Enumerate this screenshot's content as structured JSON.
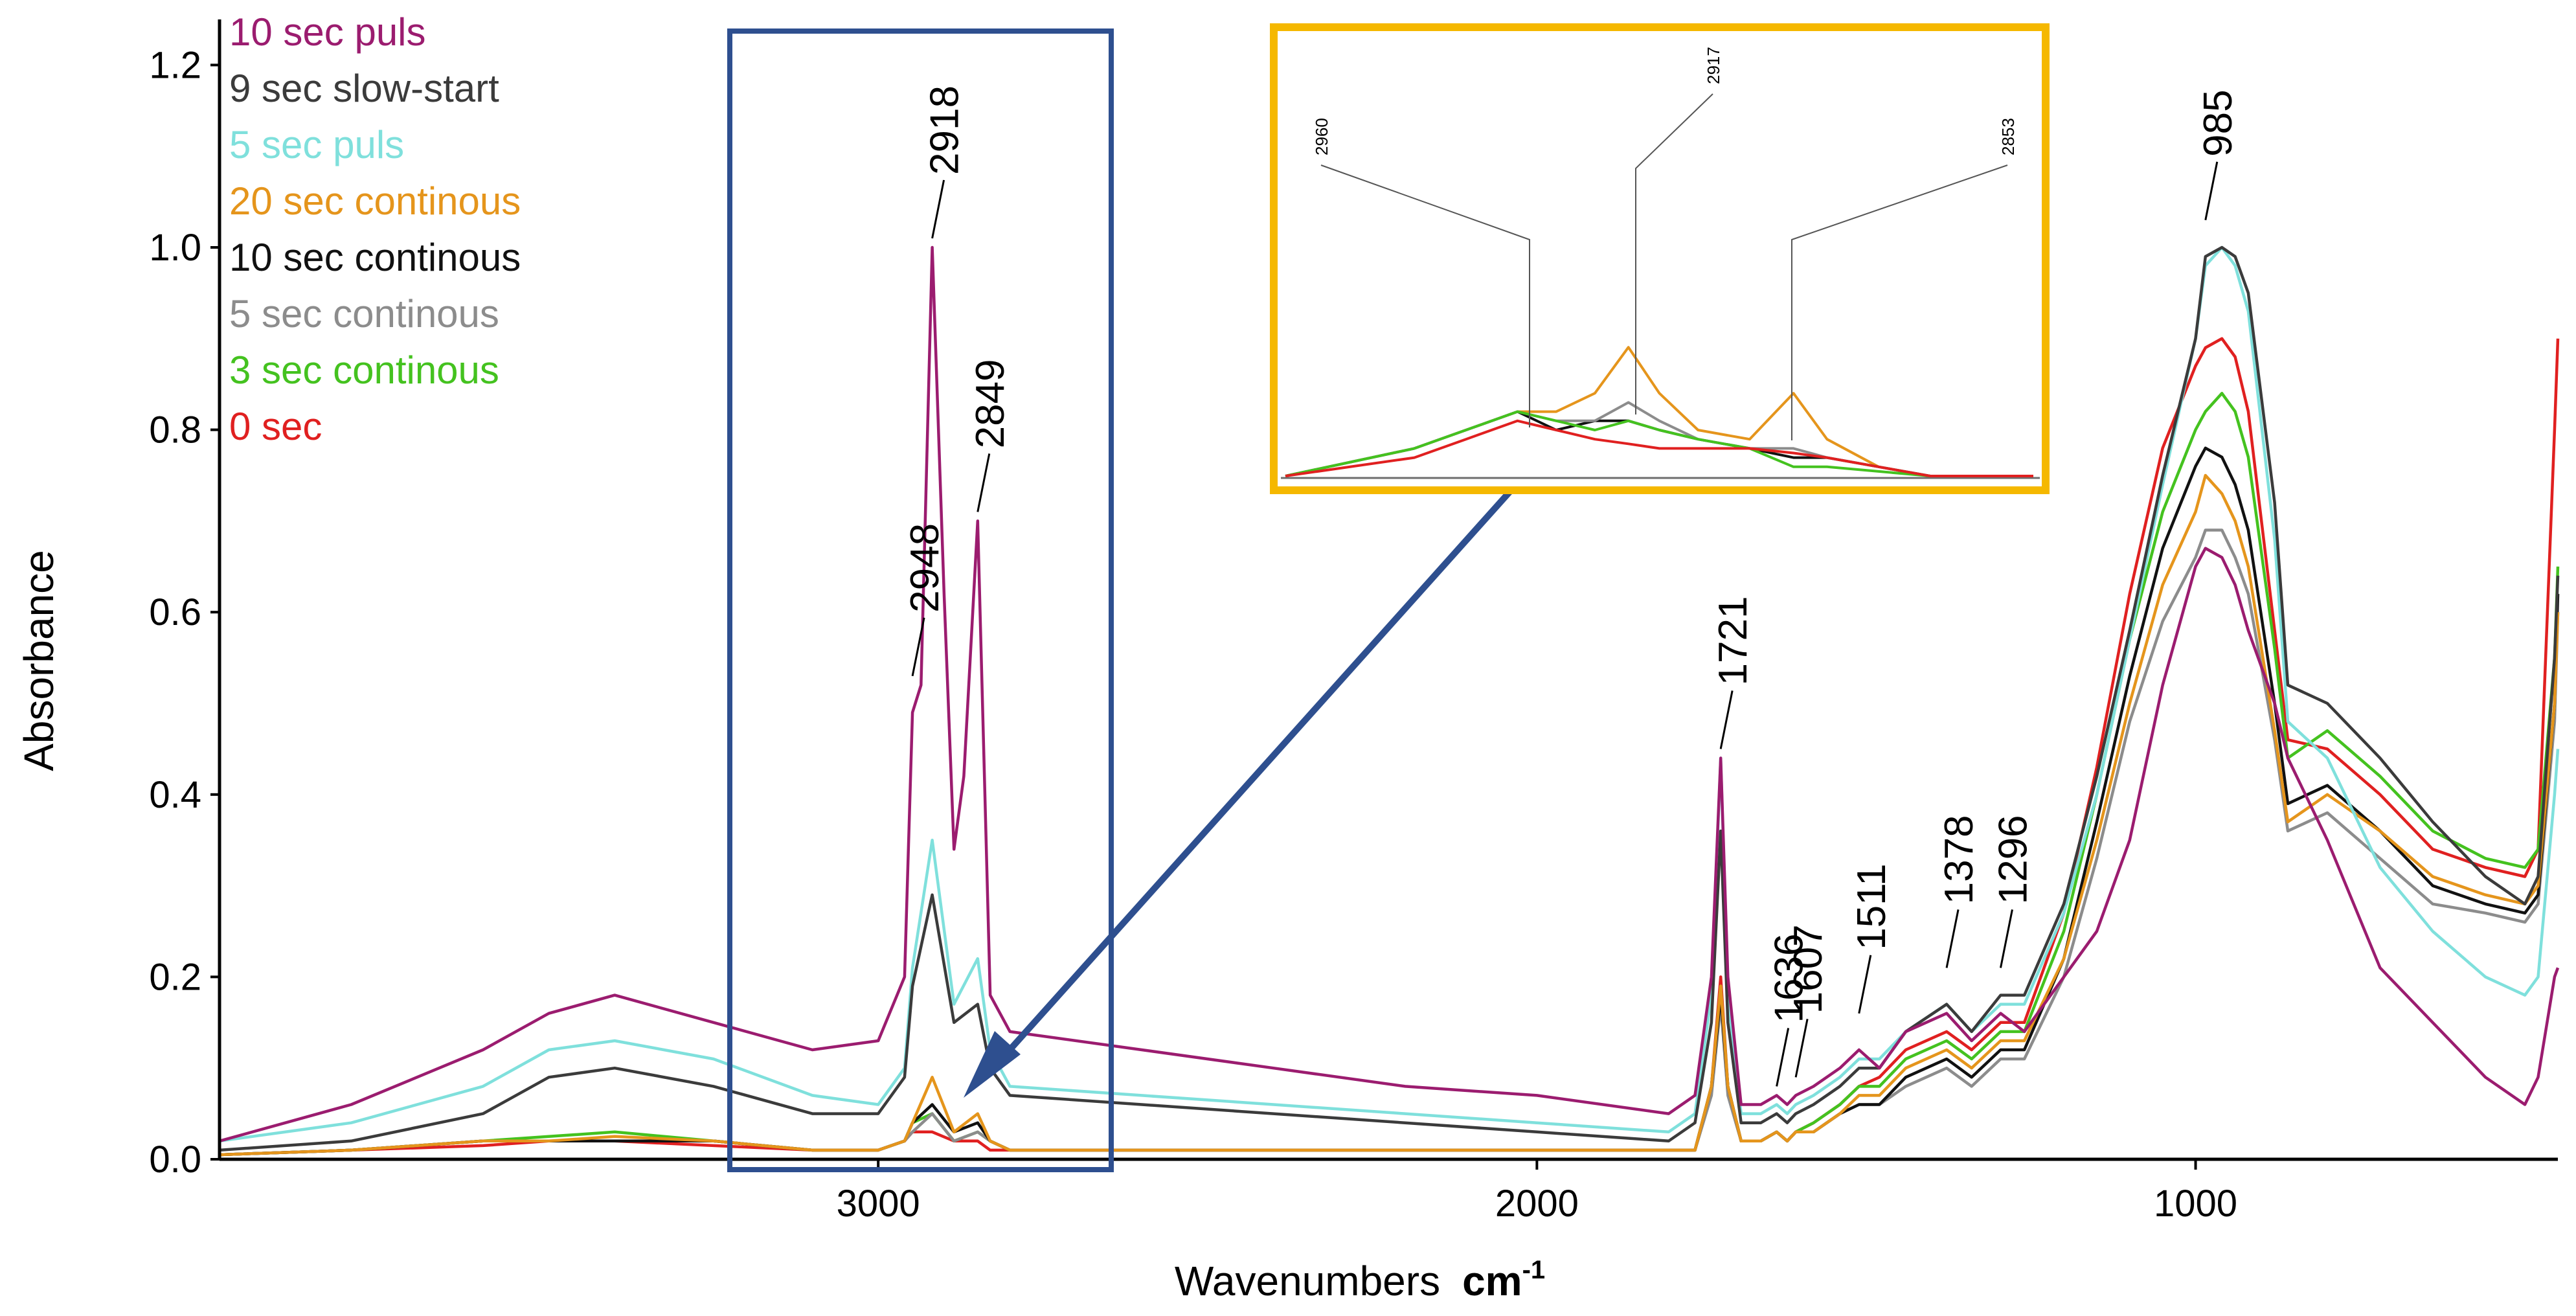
{
  "chart_data": {
    "type": "line",
    "title": "",
    "xlabel": "Wavenumbers",
    "xlabel_unit": "cm",
    "xlabel_unit_exp": "-1",
    "ylabel": "Absorbance",
    "xlim": [
      4000,
      450
    ],
    "ylim": [
      0,
      1.25
    ],
    "x_ticks": [
      3000,
      2000,
      1000
    ],
    "x_tick_labels": [
      "3000",
      "2000",
      "1000"
    ],
    "y_ticks": [
      0.0,
      0.2,
      0.4,
      0.6,
      0.8,
      1.0,
      1.2
    ],
    "y_tick_labels": [
      "0.0",
      "0.2",
      "0.4",
      "0.6",
      "0.8",
      "1.0",
      "1.2"
    ],
    "grid": false,
    "legend_position": "top-left",
    "series": [
      {
        "name": "10 sec puls",
        "color": "#9b1c6f",
        "x": [
          4000,
          3800,
          3600,
          3500,
          3400,
          3250,
          3100,
          3000,
          2960,
          2948,
          2935,
          2918,
          2900,
          2885,
          2870,
          2849,
          2830,
          2800,
          2600,
          2400,
          2200,
          2000,
          1800,
          1760,
          1735,
          1721,
          1710,
          1690,
          1660,
          1636,
          1620,
          1607,
          1580,
          1540,
          1511,
          1480,
          1440,
          1378,
          1340,
          1296,
          1260,
          1200,
          1150,
          1100,
          1050,
          1000,
          985,
          960,
          940,
          920,
          880,
          860,
          800,
          720,
          640,
          560,
          500,
          480,
          455,
          450
        ],
        "y": [
          0.02,
          0.06,
          0.12,
          0.16,
          0.18,
          0.15,
          0.12,
          0.13,
          0.2,
          0.49,
          0.52,
          1.0,
          0.62,
          0.34,
          0.42,
          0.7,
          0.18,
          0.14,
          0.12,
          0.1,
          0.08,
          0.07,
          0.05,
          0.07,
          0.2,
          0.44,
          0.2,
          0.06,
          0.06,
          0.07,
          0.06,
          0.07,
          0.08,
          0.1,
          0.12,
          0.1,
          0.14,
          0.16,
          0.13,
          0.16,
          0.14,
          0.2,
          0.25,
          0.35,
          0.52,
          0.65,
          0.67,
          0.66,
          0.63,
          0.58,
          0.5,
          0.44,
          0.35,
          0.21,
          0.15,
          0.09,
          0.06,
          0.09,
          0.2,
          0.21
        ]
      },
      {
        "name": "9 sec slow-start",
        "color": "#3b3b3b",
        "x": [
          4000,
          3800,
          3600,
          3500,
          3400,
          3250,
          3100,
          3000,
          2960,
          2948,
          2918,
          2885,
          2849,
          2830,
          2800,
          2600,
          2400,
          2200,
          2000,
          1800,
          1760,
          1735,
          1721,
          1710,
          1690,
          1660,
          1636,
          1620,
          1607,
          1580,
          1540,
          1511,
          1480,
          1440,
          1378,
          1340,
          1296,
          1260,
          1200,
          1150,
          1100,
          1050,
          1000,
          985,
          960,
          940,
          920,
          880,
          860,
          800,
          720,
          640,
          560,
          500,
          480,
          455,
          450
        ],
        "y": [
          0.01,
          0.02,
          0.05,
          0.09,
          0.1,
          0.08,
          0.05,
          0.05,
          0.09,
          0.19,
          0.29,
          0.15,
          0.17,
          0.1,
          0.07,
          0.06,
          0.05,
          0.04,
          0.03,
          0.02,
          0.04,
          0.15,
          0.36,
          0.15,
          0.04,
          0.04,
          0.05,
          0.04,
          0.05,
          0.06,
          0.08,
          0.1,
          0.1,
          0.14,
          0.17,
          0.14,
          0.18,
          0.18,
          0.28,
          0.42,
          0.58,
          0.75,
          0.9,
          0.99,
          1.0,
          0.99,
          0.95,
          0.72,
          0.52,
          0.5,
          0.44,
          0.37,
          0.31,
          0.28,
          0.31,
          0.55,
          0.64
        ]
      },
      {
        "name": "5 sec puls",
        "color": "#7fe0dc",
        "x": [
          4000,
          3800,
          3600,
          3500,
          3400,
          3250,
          3100,
          3000,
          2960,
          2948,
          2918,
          2885,
          2849,
          2830,
          2800,
          2600,
          2400,
          2200,
          2000,
          1800,
          1760,
          1735,
          1721,
          1710,
          1690,
          1660,
          1636,
          1620,
          1607,
          1580,
          1540,
          1511,
          1480,
          1440,
          1378,
          1340,
          1296,
          1260,
          1200,
          1150,
          1100,
          1050,
          1000,
          985,
          960,
          940,
          920,
          880,
          860,
          800,
          720,
          640,
          560,
          500,
          480,
          455,
          450
        ],
        "y": [
          0.02,
          0.04,
          0.08,
          0.12,
          0.13,
          0.11,
          0.07,
          0.06,
          0.1,
          0.21,
          0.35,
          0.17,
          0.22,
          0.12,
          0.08,
          0.07,
          0.06,
          0.05,
          0.04,
          0.03,
          0.05,
          0.18,
          0.44,
          0.18,
          0.05,
          0.05,
          0.06,
          0.05,
          0.06,
          0.07,
          0.09,
          0.11,
          0.11,
          0.14,
          0.17,
          0.14,
          0.17,
          0.17,
          0.27,
          0.4,
          0.57,
          0.74,
          0.9,
          0.98,
          1.0,
          0.98,
          0.93,
          0.68,
          0.48,
          0.44,
          0.32,
          0.25,
          0.2,
          0.18,
          0.2,
          0.4,
          0.45
        ]
      },
      {
        "name": "20 sec continous",
        "color": "#e5951c",
        "x": [
          4000,
          3800,
          3600,
          3500,
          3400,
          3250,
          3100,
          3000,
          2960,
          2948,
          2918,
          2885,
          2849,
          2830,
          2800,
          2600,
          2400,
          2200,
          2000,
          1800,
          1760,
          1735,
          1721,
          1710,
          1690,
          1660,
          1636,
          1620,
          1607,
          1580,
          1540,
          1511,
          1480,
          1440,
          1378,
          1340,
          1296,
          1260,
          1200,
          1150,
          1100,
          1050,
          1000,
          985,
          960,
          940,
          920,
          880,
          860,
          800,
          720,
          640,
          560,
          500,
          480,
          455,
          450
        ],
        "y": [
          0.005,
          0.01,
          0.02,
          0.02,
          0.025,
          0.02,
          0.01,
          0.01,
          0.02,
          0.04,
          0.09,
          0.03,
          0.05,
          0.02,
          0.01,
          0.01,
          0.01,
          0.01,
          0.01,
          0.01,
          0.01,
          0.08,
          0.19,
          0.08,
          0.02,
          0.02,
          0.03,
          0.02,
          0.03,
          0.03,
          0.05,
          0.07,
          0.07,
          0.1,
          0.12,
          0.1,
          0.13,
          0.13,
          0.22,
          0.35,
          0.5,
          0.63,
          0.71,
          0.75,
          0.73,
          0.7,
          0.65,
          0.47,
          0.37,
          0.4,
          0.36,
          0.31,
          0.29,
          0.28,
          0.3,
          0.5,
          0.6
        ]
      },
      {
        "name": "10 sec continous",
        "color": "#111111",
        "x": [
          4000,
          3800,
          3600,
          3500,
          3400,
          3250,
          3100,
          3000,
          2960,
          2948,
          2918,
          2885,
          2849,
          2830,
          2800,
          2600,
          2400,
          2200,
          2000,
          1800,
          1760,
          1735,
          1721,
          1710,
          1690,
          1660,
          1636,
          1620,
          1607,
          1580,
          1540,
          1511,
          1480,
          1440,
          1378,
          1340,
          1296,
          1260,
          1200,
          1150,
          1100,
          1050,
          1000,
          985,
          960,
          940,
          920,
          880,
          860,
          800,
          720,
          640,
          560,
          500,
          480,
          455,
          450
        ],
        "y": [
          0.005,
          0.01,
          0.02,
          0.02,
          0.02,
          0.02,
          0.01,
          0.01,
          0.02,
          0.04,
          0.06,
          0.03,
          0.04,
          0.02,
          0.01,
          0.01,
          0.01,
          0.01,
          0.01,
          0.01,
          0.01,
          0.08,
          0.18,
          0.08,
          0.02,
          0.02,
          0.03,
          0.02,
          0.03,
          0.03,
          0.05,
          0.06,
          0.06,
          0.09,
          0.11,
          0.09,
          0.12,
          0.12,
          0.22,
          0.37,
          0.53,
          0.67,
          0.76,
          0.78,
          0.77,
          0.74,
          0.69,
          0.5,
          0.39,
          0.41,
          0.36,
          0.3,
          0.28,
          0.27,
          0.29,
          0.5,
          0.62
        ]
      },
      {
        "name": "5 sec continous",
        "color": "#8c8c8c",
        "x": [
          4000,
          3800,
          3600,
          3500,
          3400,
          3250,
          3100,
          3000,
          2960,
          2948,
          2918,
          2885,
          2849,
          2830,
          2800,
          2600,
          2400,
          2200,
          2000,
          1800,
          1760,
          1735,
          1721,
          1710,
          1690,
          1660,
          1636,
          1620,
          1607,
          1580,
          1540,
          1511,
          1480,
          1440,
          1378,
          1340,
          1296,
          1260,
          1200,
          1150,
          1100,
          1050,
          1000,
          985,
          960,
          940,
          920,
          880,
          860,
          800,
          720,
          640,
          560,
          500,
          480,
          455,
          450
        ],
        "y": [
          0.005,
          0.01,
          0.02,
          0.02,
          0.02,
          0.02,
          0.01,
          0.01,
          0.02,
          0.03,
          0.05,
          0.02,
          0.03,
          0.02,
          0.01,
          0.01,
          0.01,
          0.01,
          0.01,
          0.01,
          0.01,
          0.07,
          0.17,
          0.07,
          0.02,
          0.02,
          0.03,
          0.02,
          0.03,
          0.03,
          0.05,
          0.06,
          0.06,
          0.08,
          0.1,
          0.08,
          0.11,
          0.11,
          0.2,
          0.33,
          0.48,
          0.59,
          0.66,
          0.69,
          0.69,
          0.66,
          0.62,
          0.46,
          0.36,
          0.38,
          0.33,
          0.28,
          0.27,
          0.26,
          0.28,
          0.48,
          0.6
        ]
      },
      {
        "name": "3 sec continous",
        "color": "#44c21f",
        "x": [
          4000,
          3800,
          3600,
          3500,
          3400,
          3250,
          3100,
          3000,
          2960,
          2948,
          2918,
          2885,
          2849,
          2830,
          2800,
          2600,
          2400,
          2200,
          2000,
          1800,
          1760,
          1735,
          1721,
          1710,
          1690,
          1660,
          1636,
          1620,
          1607,
          1580,
          1540,
          1511,
          1480,
          1440,
          1378,
          1340,
          1296,
          1260,
          1200,
          1150,
          1100,
          1050,
          1000,
          985,
          960,
          940,
          920,
          880,
          860,
          800,
          720,
          640,
          560,
          500,
          480,
          455,
          450
        ],
        "y": [
          0.005,
          0.01,
          0.02,
          0.025,
          0.03,
          0.02,
          0.01,
          0.01,
          0.02,
          0.04,
          0.05,
          0.02,
          0.03,
          0.02,
          0.01,
          0.01,
          0.01,
          0.01,
          0.01,
          0.01,
          0.01,
          0.08,
          0.19,
          0.08,
          0.02,
          0.02,
          0.03,
          0.02,
          0.03,
          0.04,
          0.06,
          0.08,
          0.08,
          0.11,
          0.13,
          0.11,
          0.14,
          0.14,
          0.25,
          0.4,
          0.57,
          0.71,
          0.8,
          0.82,
          0.84,
          0.82,
          0.77,
          0.56,
          0.44,
          0.47,
          0.42,
          0.36,
          0.33,
          0.32,
          0.34,
          0.55,
          0.65
        ]
      },
      {
        "name": "0 sec",
        "color": "#e02020",
        "x": [
          4000,
          3800,
          3600,
          3500,
          3400,
          3250,
          3100,
          3000,
          2960,
          2948,
          2918,
          2885,
          2849,
          2830,
          2800,
          2600,
          2400,
          2200,
          2000,
          1800,
          1760,
          1735,
          1721,
          1710,
          1690,
          1660,
          1636,
          1620,
          1607,
          1580,
          1540,
          1511,
          1480,
          1440,
          1378,
          1340,
          1296,
          1260,
          1200,
          1150,
          1100,
          1050,
          1000,
          985,
          960,
          940,
          920,
          880,
          860,
          800,
          720,
          640,
          560,
          500,
          480,
          455,
          450
        ],
        "y": [
          0.005,
          0.01,
          0.015,
          0.02,
          0.02,
          0.015,
          0.01,
          0.01,
          0.02,
          0.03,
          0.03,
          0.02,
          0.02,
          0.01,
          0.01,
          0.01,
          0.01,
          0.01,
          0.01,
          0.01,
          0.01,
          0.08,
          0.2,
          0.08,
          0.02,
          0.02,
          0.03,
          0.02,
          0.03,
          0.04,
          0.06,
          0.08,
          0.09,
          0.12,
          0.14,
          0.12,
          0.15,
          0.15,
          0.27,
          0.43,
          0.62,
          0.78,
          0.87,
          0.89,
          0.9,
          0.88,
          0.82,
          0.58,
          0.46,
          0.45,
          0.4,
          0.34,
          0.32,
          0.31,
          0.34,
          0.8,
          0.9
        ]
      }
    ],
    "peak_labels": [
      {
        "text": "2948",
        "x": 2948,
        "y": 0.52
      },
      {
        "text": "2918",
        "x": 2918,
        "y": 1.0
      },
      {
        "text": "2849",
        "x": 2849,
        "y": 0.7
      },
      {
        "text": "1721",
        "x": 1721,
        "y": 0.44
      },
      {
        "text": "1636",
        "x": 1636,
        "y": 0.07
      },
      {
        "text": "1607",
        "x": 1607,
        "y": 0.08
      },
      {
        "text": "1511",
        "x": 1511,
        "y": 0.15
      },
      {
        "text": "1378",
        "x": 1378,
        "y": 0.2
      },
      {
        "text": "1296",
        "x": 1296,
        "y": 0.2
      },
      {
        "text": "985",
        "x": 985,
        "y": 1.02
      }
    ],
    "highlight_region": {
      "x_range": [
        3220,
        2650
      ],
      "y_range": [
        0,
        1.25
      ],
      "color": "#2e4f8f"
    },
    "inset": {
      "border_color": "#f5b800",
      "peak_labels": [
        "2960",
        "2917",
        "2853"
      ],
      "x": [
        3050,
        3000,
        2980,
        2960,
        2945,
        2930,
        2917,
        2905,
        2890,
        2870,
        2853,
        2840,
        2820,
        2800,
        2780,
        2760
      ],
      "series": [
        {
          "name": "20 sec continous",
          "color": "#e5951c",
          "values": [
            0.0,
            0.03,
            0.05,
            0.07,
            0.07,
            0.09,
            0.14,
            0.09,
            0.05,
            0.04,
            0.09,
            0.04,
            0.01,
            0.0,
            0.0,
            0.0
          ]
        },
        {
          "name": "10 sec continous",
          "color": "#111111",
          "values": [
            0.0,
            0.03,
            0.05,
            0.07,
            0.05,
            0.06,
            0.06,
            0.05,
            0.04,
            0.03,
            0.02,
            0.02,
            0.01,
            0.0,
            0.0,
            0.0
          ]
        },
        {
          "name": "5 sec continous",
          "color": "#8c8c8c",
          "values": [
            0.0,
            0.03,
            0.05,
            0.07,
            0.06,
            0.06,
            0.08,
            0.06,
            0.04,
            0.03,
            0.03,
            0.02,
            0.01,
            0.0,
            0.0,
            0.0
          ]
        },
        {
          "name": "3 sec continous",
          "color": "#44c21f",
          "values": [
            0.0,
            0.03,
            0.05,
            0.07,
            0.06,
            0.05,
            0.06,
            0.05,
            0.04,
            0.03,
            0.01,
            0.01,
            0.005,
            0.0,
            0.0,
            0.0
          ]
        },
        {
          "name": "0 sec",
          "color": "#e02020",
          "values": [
            0.0,
            0.02,
            0.04,
            0.06,
            0.05,
            0.04,
            0.035,
            0.03,
            0.03,
            0.03,
            0.025,
            0.02,
            0.01,
            0.0,
            0.0,
            0.0
          ]
        }
      ]
    }
  }
}
